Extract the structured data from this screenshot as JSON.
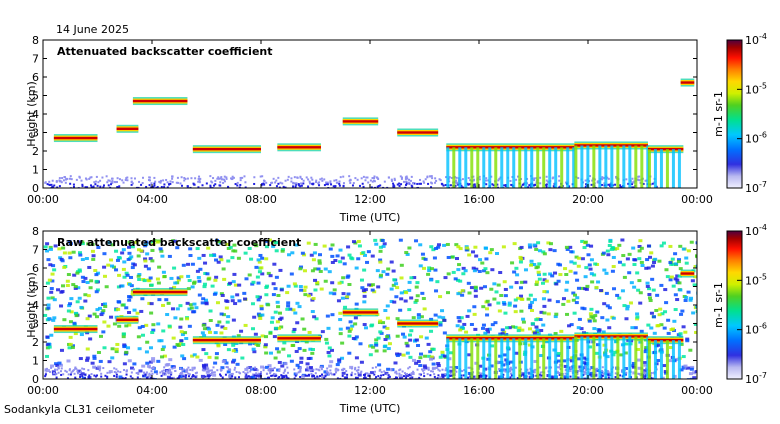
{
  "page": {
    "date": "14 June 2025",
    "footer": "Sodankyla CL31 ceilometer"
  },
  "colors": {
    "colormap": [
      "#f0f0ff",
      "#d8d8f8",
      "#9090f0",
      "#2020e0",
      "#0050ff",
      "#00b0ff",
      "#00e8a0",
      "#40d020",
      "#c0f000",
      "#ffe000",
      "#ff9000",
      "#ff2000",
      "#c00000",
      "#800000",
      "#400040"
    ]
  },
  "chart_data": [
    {
      "type": "heatmap",
      "title": "Attenuated backscatter coefficient",
      "xlabel": "Time (UTC)",
      "ylabel": "Height (km)",
      "x_ticks": [
        "00:00",
        "04:00",
        "08:00",
        "12:00",
        "16:00",
        "20:00",
        "00:00"
      ],
      "y_ticks": [
        "0",
        "1",
        "2",
        "3",
        "4",
        "5",
        "6",
        "7",
        "8"
      ],
      "xlim_hours": [
        0,
        24
      ],
      "ylim_km": [
        0,
        8
      ],
      "colorbar": {
        "scale": "log",
        "unit_label": "m-1 sr-1",
        "range": [
          1e-07,
          0.0001
        ],
        "tick_labels": [
          "10-7",
          "10-6",
          "10-5",
          "10-4"
        ]
      },
      "cloud_layers": [
        {
          "start_h": 0.4,
          "end_h": 2.0,
          "height_km": 2.7
        },
        {
          "start_h": 2.7,
          "end_h": 3.5,
          "height_km": 3.2
        },
        {
          "start_h": 3.3,
          "end_h": 5.3,
          "height_km": 4.7
        },
        {
          "start_h": 5.5,
          "end_h": 8.0,
          "height_km": 2.1
        },
        {
          "start_h": 8.6,
          "end_h": 10.2,
          "height_km": 2.2
        },
        {
          "start_h": 11.0,
          "end_h": 12.3,
          "height_km": 3.6
        },
        {
          "start_h": 13.0,
          "end_h": 14.5,
          "height_km": 3.0
        },
        {
          "start_h": 14.8,
          "end_h": 19.5,
          "height_km": 2.2
        },
        {
          "start_h": 19.5,
          "end_h": 22.2,
          "height_km": 2.3
        },
        {
          "start_h": 22.2,
          "end_h": 23.5,
          "height_km": 2.1
        },
        {
          "start_h": 23.4,
          "end_h": 23.9,
          "height_km": 5.7
        }
      ]
    },
    {
      "type": "heatmap",
      "title": "Raw attenuated backscatter coefficient",
      "xlabel": "Time (UTC)",
      "ylabel": "Height (km)",
      "x_ticks": [
        "00:00",
        "04:00",
        "08:00",
        "12:00",
        "16:00",
        "20:00",
        "00:00"
      ],
      "y_ticks": [
        "0",
        "1",
        "2",
        "3",
        "4",
        "5",
        "6",
        "7",
        "8"
      ],
      "xlim_hours": [
        0,
        24
      ],
      "ylim_km": [
        0,
        8
      ],
      "colorbar": {
        "scale": "log",
        "unit_label": "m-1 sr-1",
        "range": [
          1e-07,
          0.0001
        ],
        "tick_labels": [
          "10-7",
          "10-6",
          "10-5",
          "10-4"
        ]
      }
    }
  ]
}
